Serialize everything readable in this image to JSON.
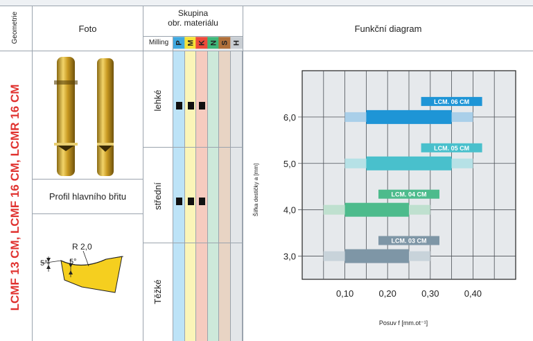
{
  "headers": {
    "geometry": "Geometrie",
    "photo": "Foto",
    "group_line1": "Skupina",
    "group_line2": "obr. materiálu",
    "milling": "Milling",
    "diagram": "Funkční diagram"
  },
  "materials": [
    {
      "letter": "P",
      "color": "#3fa9e0",
      "col_color": "#bde3f7"
    },
    {
      "letter": "M",
      "color": "#f5e23a",
      "col_color": "#fbf5b8"
    },
    {
      "letter": "K",
      "color": "#ee4a3b",
      "col_color": "#f6cbbf"
    },
    {
      "letter": "N",
      "color": "#3fb87a",
      "col_color": "#cde9da"
    },
    {
      "letter": "S",
      "color": "#b0703a",
      "col_color": "#e8d4c4"
    },
    {
      "letter": "H",
      "color": "#c9ced3",
      "col_color": "#e3e6e9"
    }
  ],
  "product_title": "LCMF 13 CM, LCMF 16 CM,  LCMR 16 CM",
  "profile_label": "Profil hlavního břitu",
  "profile_radius": "R 2,0",
  "profile_angle_left": "5°",
  "profile_angle_right": "5°",
  "operations": [
    {
      "label": "lehké",
      "marks": [
        true,
        true,
        true
      ]
    },
    {
      "label": "střední",
      "marks": [
        true,
        true,
        true
      ]
    },
    {
      "label": "Těžké",
      "marks": [
        false,
        false,
        false
      ]
    }
  ],
  "chart_data": {
    "type": "bar",
    "orientation": "horizontal-range",
    "xlabel": "Posuv f [mm.ot⁻¹]",
    "ylabel": "Šířka destičky a [mm]",
    "xlim": [
      0.0,
      0.5
    ],
    "ylim": [
      2.5,
      7.0
    ],
    "x_ticks": [
      0.1,
      0.2,
      0.3,
      0.4
    ],
    "x_tick_labels": [
      "0,10",
      "0,20",
      "0,30",
      "0,40"
    ],
    "y_ticks": [
      3.0,
      4.0,
      5.0,
      6.0
    ],
    "y_tick_labels": [
      "3,0",
      "4,0",
      "5,0",
      "6,0"
    ],
    "grid": true,
    "series": [
      {
        "name": "LCM. 06 CM",
        "y": 6.0,
        "range_min": 0.1,
        "range_max": 0.4,
        "optimal_min": 0.15,
        "optimal_max": 0.35,
        "color": "#1e95d6",
        "light": "#a9cfe9",
        "label_color": "#1e95d6"
      },
      {
        "name": "LCM. 05 CM",
        "y": 5.0,
        "range_min": 0.1,
        "range_max": 0.4,
        "optimal_min": 0.15,
        "optimal_max": 0.35,
        "color": "#49c0cc",
        "light": "#b6e1e6",
        "label_color": "#49c0cc"
      },
      {
        "name": "LCM. 04 CM",
        "y": 4.0,
        "range_min": 0.05,
        "range_max": 0.3,
        "optimal_min": 0.1,
        "optimal_max": 0.25,
        "color": "#4dbb8c",
        "light": "#bfe0cf",
        "label_color": "#4dbb8c"
      },
      {
        "name": "LCM. 03 CM",
        "y": 3.0,
        "range_min": 0.05,
        "range_max": 0.3,
        "optimal_min": 0.1,
        "optimal_max": 0.25,
        "color": "#7e96a6",
        "light": "#c8d3da",
        "label_color": "#7e96a6"
      }
    ]
  }
}
